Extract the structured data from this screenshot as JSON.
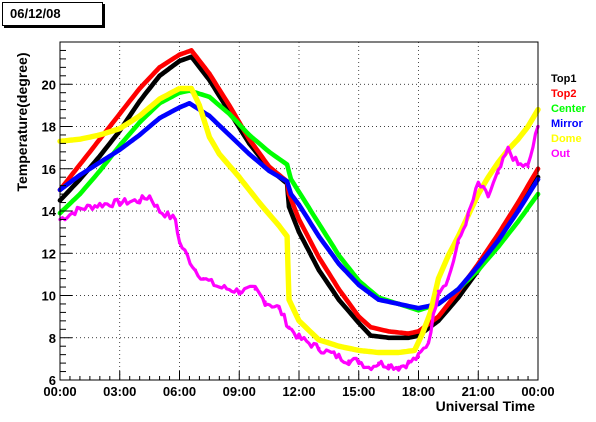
{
  "header": {
    "date_label": "06/12/08"
  },
  "chart_data": {
    "type": "scatter",
    "xlabel": "Universal Time",
    "ylabel": "Temperature(degree)",
    "xlim": [
      0,
      24
    ],
    "ylim": [
      6,
      22
    ],
    "x_ticks": [
      0,
      3,
      6,
      9,
      12,
      15,
      18,
      21,
      24
    ],
    "x_tick_labels": [
      "00:00",
      "03:00",
      "06:00",
      "09:00",
      "12:00",
      "15:00",
      "18:00",
      "21:00",
      "00:00"
    ],
    "y_ticks": [
      6,
      8,
      10,
      12,
      14,
      16,
      18,
      20
    ],
    "y_tick_labels": [
      "6",
      "8",
      "10",
      "12",
      "14",
      "16",
      "18",
      "20"
    ],
    "legend_position": "right",
    "series": [
      {
        "name": "Top1",
        "color": "#000000",
        "points": [
          [
            0,
            14.5
          ],
          [
            1,
            15.5
          ],
          [
            2,
            16.6
          ],
          [
            3,
            17.8
          ],
          [
            4,
            19.2
          ],
          [
            5,
            20.4
          ],
          [
            6,
            21.1
          ],
          [
            6.6,
            21.3
          ],
          [
            7.5,
            20.2
          ],
          [
            8.5,
            18.7
          ],
          [
            9.5,
            17.2
          ],
          [
            10.5,
            16.0
          ],
          [
            11.4,
            15.3
          ],
          [
            11.5,
            14.2
          ],
          [
            12,
            13.0
          ],
          [
            13,
            11.2
          ],
          [
            14,
            9.8
          ],
          [
            15,
            8.7
          ],
          [
            15.6,
            8.1
          ],
          [
            16.5,
            8.0
          ],
          [
            17.5,
            8.0
          ],
          [
            18,
            8.1
          ],
          [
            19,
            8.8
          ],
          [
            20,
            9.9
          ],
          [
            21,
            11.2
          ],
          [
            22,
            12.6
          ],
          [
            23,
            14.1
          ],
          [
            24,
            15.6
          ]
        ]
      },
      {
        "name": "Top2",
        "color": "#ff0000",
        "points": [
          [
            0,
            15.0
          ],
          [
            1,
            16.2
          ],
          [
            2,
            17.4
          ],
          [
            3,
            18.6
          ],
          [
            4,
            19.8
          ],
          [
            5,
            20.8
          ],
          [
            6,
            21.4
          ],
          [
            6.6,
            21.6
          ],
          [
            7.5,
            20.5
          ],
          [
            8.5,
            19.0
          ],
          [
            9.5,
            17.4
          ],
          [
            10.5,
            16.1
          ],
          [
            11.4,
            15.4
          ],
          [
            11.5,
            14.8
          ],
          [
            12,
            13.6
          ],
          [
            13,
            11.8
          ],
          [
            14,
            10.3
          ],
          [
            15,
            9.0
          ],
          [
            15.6,
            8.5
          ],
          [
            16.5,
            8.3
          ],
          [
            17.5,
            8.2
          ],
          [
            18,
            8.3
          ],
          [
            19,
            9.0
          ],
          [
            20,
            10.2
          ],
          [
            21,
            11.5
          ],
          [
            22,
            12.9
          ],
          [
            23,
            14.4
          ],
          [
            24,
            16.0
          ]
        ]
      },
      {
        "name": "Center",
        "color": "#00ff00",
        "points": [
          [
            0,
            13.9
          ],
          [
            1,
            14.8
          ],
          [
            2,
            15.9
          ],
          [
            3,
            17.1
          ],
          [
            4,
            18.2
          ],
          [
            5,
            19.1
          ],
          [
            6,
            19.6
          ],
          [
            6.5,
            19.7
          ],
          [
            7.5,
            19.4
          ],
          [
            8.5,
            18.6
          ],
          [
            9.5,
            17.6
          ],
          [
            10.5,
            16.8
          ],
          [
            11.4,
            16.2
          ],
          [
            11.6,
            15.5
          ],
          [
            12,
            14.9
          ],
          [
            13,
            13.4
          ],
          [
            14,
            11.9
          ],
          [
            15,
            10.7
          ],
          [
            16,
            9.9
          ],
          [
            17,
            9.6
          ],
          [
            18,
            9.3
          ],
          [
            19,
            9.6
          ],
          [
            20,
            10.3
          ],
          [
            21,
            11.2
          ],
          [
            22,
            12.3
          ],
          [
            23,
            13.5
          ],
          [
            24,
            14.8
          ]
        ]
      },
      {
        "name": "Mirror",
        "color": "#0000ff",
        "points": [
          [
            0,
            15.0
          ],
          [
            1,
            15.7
          ],
          [
            2,
            16.3
          ],
          [
            3,
            16.9
          ],
          [
            4,
            17.6
          ],
          [
            5,
            18.4
          ],
          [
            6,
            18.9
          ],
          [
            6.5,
            19.1
          ],
          [
            7.5,
            18.5
          ],
          [
            8.5,
            17.6
          ],
          [
            9.5,
            16.7
          ],
          [
            10.5,
            15.9
          ],
          [
            11.4,
            15.4
          ],
          [
            11.6,
            14.8
          ],
          [
            12,
            14.3
          ],
          [
            13,
            12.8
          ],
          [
            14,
            11.5
          ],
          [
            15,
            10.5
          ],
          [
            16,
            9.8
          ],
          [
            17,
            9.6
          ],
          [
            18,
            9.4
          ],
          [
            19,
            9.6
          ],
          [
            20,
            10.3
          ],
          [
            21,
            11.4
          ],
          [
            22,
            12.6
          ],
          [
            23,
            14.0
          ],
          [
            24,
            15.5
          ]
        ]
      },
      {
        "name": "Dome",
        "color": "#ffff00",
        "points": [
          [
            0,
            17.3
          ],
          [
            1,
            17.4
          ],
          [
            2,
            17.6
          ],
          [
            3,
            17.9
          ],
          [
            4,
            18.5
          ],
          [
            5,
            19.3
          ],
          [
            6,
            19.8
          ],
          [
            6.6,
            19.8
          ],
          [
            7,
            19.0
          ],
          [
            7.5,
            17.5
          ],
          [
            8,
            16.7
          ],
          [
            9,
            15.6
          ],
          [
            10,
            14.4
          ],
          [
            11,
            13.3
          ],
          [
            11.4,
            12.8
          ],
          [
            11.5,
            9.8
          ],
          [
            12,
            8.8
          ],
          [
            13,
            7.9
          ],
          [
            14,
            7.6
          ],
          [
            15,
            7.4
          ],
          [
            16,
            7.3
          ],
          [
            17,
            7.3
          ],
          [
            17.8,
            7.4
          ],
          [
            18.2,
            8.2
          ],
          [
            18.6,
            9.2
          ],
          [
            19,
            10.8
          ],
          [
            19.5,
            11.9
          ],
          [
            20,
            12.8
          ],
          [
            20.5,
            13.8
          ],
          [
            21,
            14.8
          ],
          [
            21.5,
            15.6
          ],
          [
            22,
            16.3
          ],
          [
            22.5,
            16.9
          ],
          [
            23,
            17.4
          ],
          [
            23.5,
            18.0
          ],
          [
            24,
            18.8
          ]
        ]
      },
      {
        "name": "Out",
        "color": "#ff00ff",
        "points": [
          [
            0,
            13.6
          ],
          [
            1,
            14.1
          ],
          [
            2,
            14.3
          ],
          [
            3,
            14.4
          ],
          [
            4,
            14.5
          ],
          [
            4.5,
            14.7
          ],
          [
            5,
            14.0
          ],
          [
            5.8,
            13.6
          ],
          [
            6,
            12.5
          ],
          [
            6.8,
            11.2
          ],
          [
            7.2,
            10.8
          ],
          [
            8,
            10.4
          ],
          [
            9,
            10.2
          ],
          [
            9.8,
            10.3
          ],
          [
            10.3,
            9.7
          ],
          [
            11,
            9.4
          ],
          [
            11.5,
            8.5
          ],
          [
            12,
            8.0
          ],
          [
            13,
            7.5
          ],
          [
            14,
            7.1
          ],
          [
            14.5,
            6.9
          ],
          [
            15,
            6.9
          ],
          [
            15.5,
            6.6
          ],
          [
            16,
            6.8
          ],
          [
            16.5,
            6.7
          ],
          [
            17,
            6.6
          ],
          [
            17.5,
            6.8
          ],
          [
            18,
            7.1
          ],
          [
            18.5,
            7.8
          ],
          [
            19,
            10.2
          ],
          [
            19.5,
            10.8
          ],
          [
            20,
            12.5
          ],
          [
            20.5,
            13.8
          ],
          [
            21,
            15.3
          ],
          [
            21.5,
            14.7
          ],
          [
            22,
            15.8
          ],
          [
            22.5,
            16.9
          ],
          [
            23,
            16.2
          ],
          [
            23.5,
            16.1
          ],
          [
            24,
            18.0
          ]
        ]
      }
    ]
  }
}
